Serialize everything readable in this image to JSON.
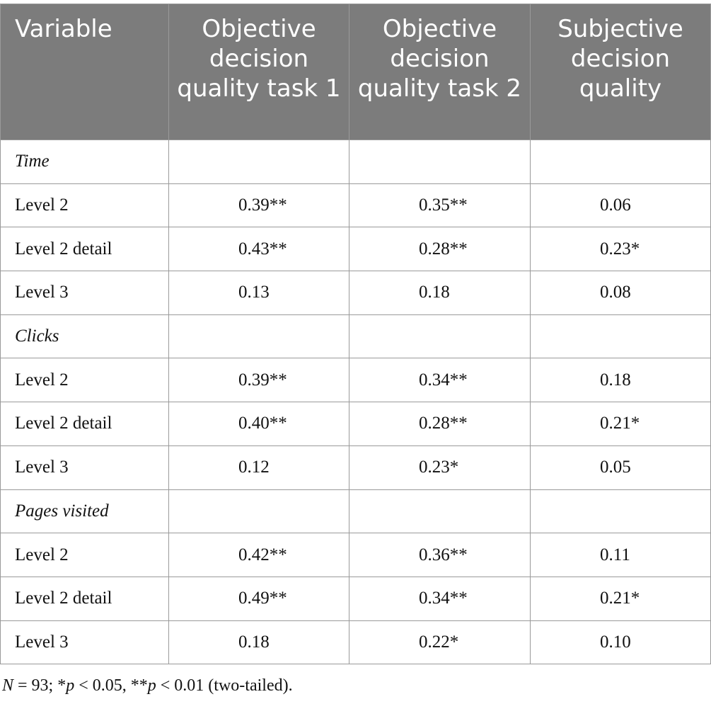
{
  "table": {
    "headers": [
      "Variable",
      "Objective decision quality task 1",
      "Objective decision quality task 2",
      "Subjective decision quality"
    ],
    "sections": [
      {
        "name": "Time",
        "rows": [
          {
            "label": "Level 2",
            "values": [
              "0.39**",
              "0.35**",
              "0.06"
            ]
          },
          {
            "label": "Level 2 detail",
            "values": [
              "0.43**",
              "0.28**",
              "0.23*"
            ]
          },
          {
            "label": "Level 3",
            "values": [
              "0.13",
              "0.18",
              "0.08"
            ]
          }
        ]
      },
      {
        "name": "Clicks",
        "rows": [
          {
            "label": "Level 2",
            "values": [
              "0.39**",
              "0.34**",
              "0.18"
            ]
          },
          {
            "label": "Level 2 detail",
            "values": [
              "0.40**",
              "0.28**",
              "0.21*"
            ]
          },
          {
            "label": "Level 3",
            "values": [
              "0.12",
              "0.23*",
              "0.05"
            ]
          }
        ]
      },
      {
        "name": "Pages visited",
        "rows": [
          {
            "label": "Level 2",
            "values": [
              "0.42**",
              "0.36**",
              "0.11"
            ]
          },
          {
            "label": "Level 2 detail",
            "values": [
              "0.49**",
              "0.34**",
              "0.21*"
            ]
          },
          {
            "label": "Level 3",
            "values": [
              "0.18",
              "0.22*",
              "0.10"
            ]
          }
        ]
      }
    ]
  },
  "footnote": {
    "n_symbol": "N",
    "n_value": " = 93; *",
    "p1_symbol": "p",
    "p1_value": " < 0.05, **",
    "p2_symbol": "p",
    "p2_value": " < 0.01 (two-tailed)."
  },
  "colors": {
    "header_bg": "#7c7c7c",
    "header_text": "#ffffff",
    "grid": "#9a9a9a"
  }
}
